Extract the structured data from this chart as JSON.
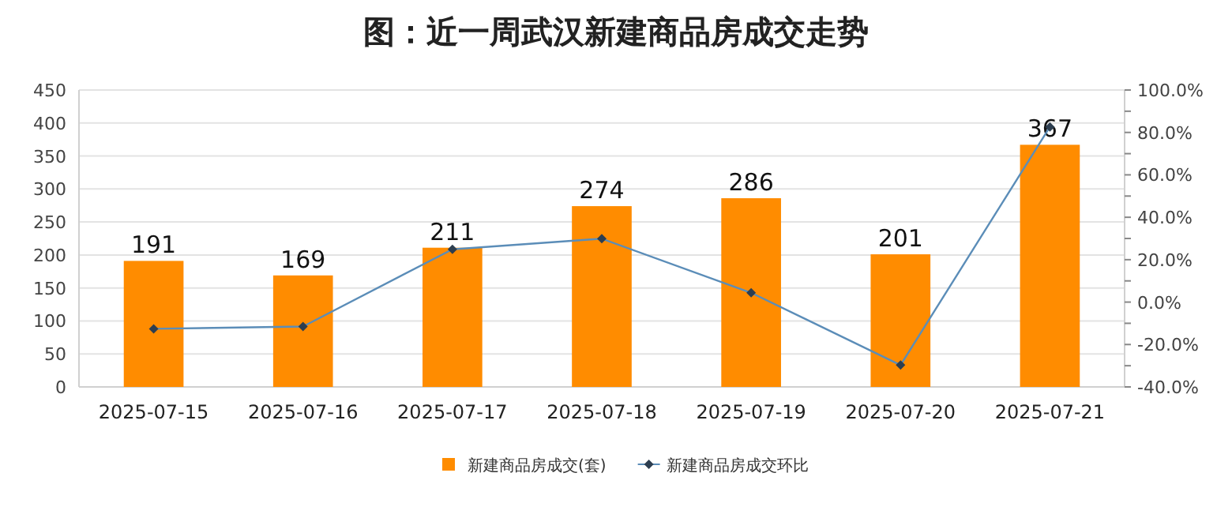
{
  "chart_data": {
    "type": "bar",
    "title": "图：近一周武汉新建商品房成交走势",
    "categories": [
      "2025-07-15",
      "2025-07-16",
      "2025-07-17",
      "2025-07-18",
      "2025-07-19",
      "2025-07-20",
      "2025-07-21"
    ],
    "series": [
      {
        "name": "新建商品房成交(套)",
        "color": "#ff8c00",
        "values": [
          191,
          169,
          211,
          274,
          286,
          201,
          367
        ],
        "value_labels": [
          "191",
          "169",
          "211",
          "274",
          "286",
          "201",
          "367"
        ]
      },
      {
        "name": "新建商品房成交环比",
        "type": "line",
        "axis": "y2",
        "color": "#5b8db8",
        "marker": "diamond",
        "values": [
          -12.6,
          -11.5,
          24.9,
          29.9,
          4.4,
          -29.7,
          82.6
        ]
      }
    ],
    "ylim": [
      0,
      450
    ],
    "yticks": [
      0,
      50,
      100,
      150,
      200,
      250,
      300,
      350,
      400,
      450
    ],
    "y2lim": [
      -40,
      100
    ],
    "y2ticks": [
      {
        "value": -40,
        "label": "-40.0%"
      },
      {
        "value": -30,
        "label": null
      },
      {
        "value": -20,
        "label": "-20.0%"
      },
      {
        "value": -10,
        "label": null
      },
      {
        "value": 0,
        "label": "0.0%"
      },
      {
        "value": 10,
        "label": null
      },
      {
        "value": 20,
        "label": "20.0%"
      },
      {
        "value": 30,
        "label": null
      },
      {
        "value": 40,
        "label": "40.0%"
      },
      {
        "value": 50,
        "label": null
      },
      {
        "value": 60,
        "label": "60.0%"
      },
      {
        "value": 70,
        "label": null
      },
      {
        "value": 80,
        "label": "80.0%"
      },
      {
        "value": 90,
        "label": null
      },
      {
        "value": 100,
        "label": "100.0%"
      }
    ],
    "grid": "y",
    "legend": "bottom"
  }
}
